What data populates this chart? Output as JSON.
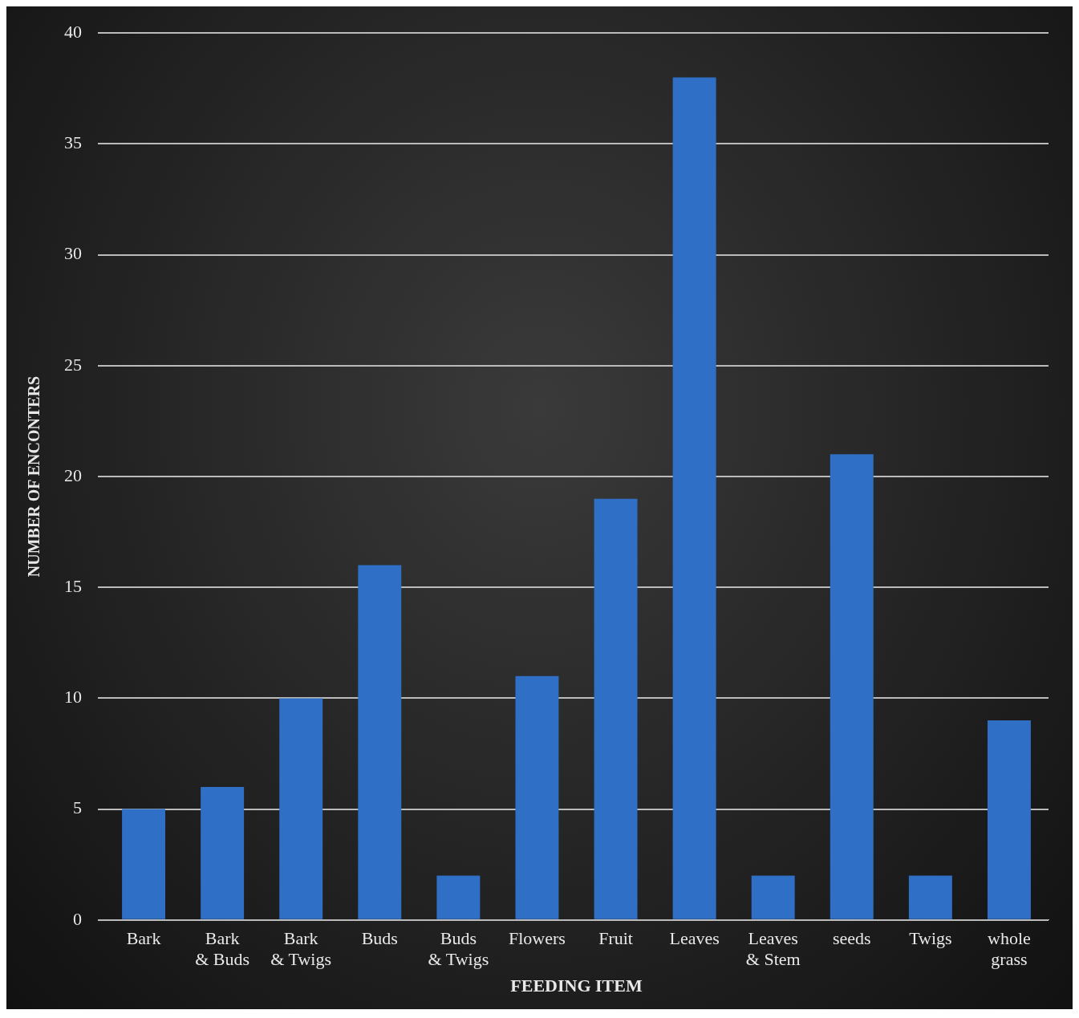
{
  "chart_data": {
    "type": "bar",
    "xlabel": "FEEDING ITEM",
    "ylabel": "NUMBER OF ENCONTERS",
    "categories": [
      "Bark",
      "Bark & Buds",
      "Bark & Twigs",
      "Buds",
      "Buds & Twigs",
      "Flowers",
      "Fruit",
      "Leaves",
      "Leaves & Stem",
      "seeds",
      "Twigs",
      "whole grass"
    ],
    "values": [
      5,
      6,
      10,
      16,
      2,
      11,
      19,
      38,
      2,
      21,
      2,
      9
    ],
    "color": "#2f6fc6",
    "ylim": [
      0,
      40
    ],
    "yticks": [
      0,
      5,
      10,
      15,
      20,
      25,
      30,
      35,
      40
    ],
    "grid": "y",
    "legend": false
  }
}
